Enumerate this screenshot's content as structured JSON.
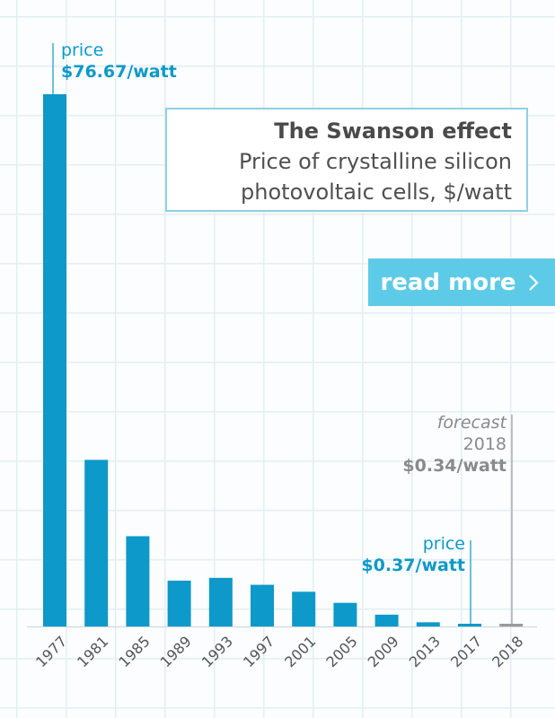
{
  "chart_data": {
    "type": "bar",
    "title": "The Swanson effect",
    "subtitle_line1": "Price of crystalline silicon",
    "subtitle_line2": "photovoltaic cells, $/watt",
    "categories": [
      "1977",
      "1981",
      "1985",
      "1989",
      "1993",
      "1997",
      "2001",
      "2005",
      "2009",
      "2013",
      "2017",
      "2018"
    ],
    "values": [
      76.67,
      24.0,
      13.0,
      6.6,
      7.0,
      6.0,
      5.0,
      3.4,
      1.7,
      0.6,
      0.37,
      0.34
    ],
    "forecast_index": 11,
    "ylim": [
      0,
      80
    ],
    "xlabel": "",
    "ylabel": "",
    "grid": true,
    "colors": {
      "bar": "#0d99c9",
      "forecast_bar": "#9a9a9a",
      "accent": "#5dcbe7"
    },
    "annotations": {
      "first": {
        "label": "price",
        "value": "$76.67/watt"
      },
      "last": {
        "label": "price",
        "value": "$0.37/watt"
      },
      "forecast": {
        "label": "forecast",
        "year": "2018",
        "value": "$0.34/watt"
      }
    }
  },
  "ui": {
    "read_more_label": "read more",
    "read_more_icon": "chevron-right-icon"
  }
}
